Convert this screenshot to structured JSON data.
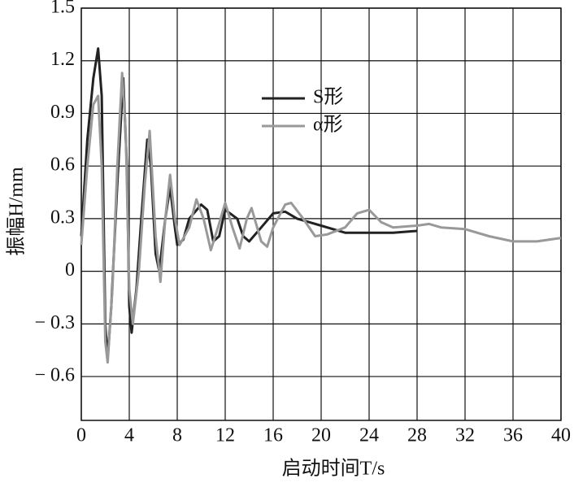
{
  "chart_data": {
    "type": "line",
    "x_label": "启动时间T/s",
    "y_label": "振幅H/mm",
    "xlim": [
      0,
      40
    ],
    "xticks": [
      0,
      4,
      8,
      12,
      16,
      20,
      24,
      28,
      32,
      36,
      40
    ],
    "ylim": [
      -0.85,
      1.5
    ],
    "yticks": [
      {
        "value": -0.6,
        "label": "− 0.6"
      },
      {
        "value": -0.3,
        "label": "− 0.3"
      },
      0,
      0.3,
      0.6,
      0.9,
      1.2,
      1.5
    ],
    "grid": true,
    "legend": "top-center",
    "series": [
      {
        "name": "S形",
        "color": "#222222",
        "x": [
          0,
          0.5,
          1,
          1.4,
          1.7,
          2,
          2.2,
          2.5,
          3,
          3.5,
          3.8,
          4,
          4.2,
          4.6,
          5,
          5.5,
          5.8,
          6.2,
          6.5,
          7,
          7.4,
          7.8,
          8,
          8.5,
          9,
          10,
          10.5,
          11,
          11.5,
          12,
          13,
          13.5,
          14,
          15,
          16,
          17,
          18,
          20,
          22,
          24,
          26,
          28
        ],
        "values": [
          0.2,
          0.75,
          1.1,
          1.27,
          1.0,
          -0.3,
          -0.5,
          -0.2,
          0.5,
          1.1,
          0.6,
          -0.2,
          -0.35,
          -0.1,
          0.3,
          0.75,
          0.6,
          0.1,
          0.0,
          0.3,
          0.48,
          0.25,
          0.15,
          0.18,
          0.3,
          0.38,
          0.35,
          0.17,
          0.2,
          0.35,
          0.3,
          0.2,
          0.17,
          0.25,
          0.33,
          0.34,
          0.3,
          0.26,
          0.22,
          0.22,
          0.22,
          0.23
        ]
      },
      {
        "name": "α形",
        "color": "#999999",
        "x": [
          0,
          0.5,
          1,
          1.4,
          1.7,
          2,
          2.2,
          2.6,
          3,
          3.4,
          3.7,
          4,
          4.3,
          4.8,
          5.3,
          5.7,
          6.2,
          6.6,
          7,
          7.4,
          7.8,
          8.2,
          9,
          9.6,
          10.2,
          10.8,
          11.4,
          12,
          12.6,
          13.2,
          13.8,
          14.2,
          15,
          15.5,
          16,
          17,
          17.5,
          18.5,
          19.5,
          20.5,
          22,
          23,
          24,
          25,
          26,
          28,
          29,
          30,
          32,
          34,
          36,
          38,
          40
        ],
        "values": [
          0.15,
          0.6,
          0.95,
          1.0,
          0.6,
          -0.4,
          -0.52,
          -0.1,
          0.6,
          1.13,
          0.8,
          -0.1,
          -0.3,
          0.0,
          0.5,
          0.8,
          0.2,
          -0.06,
          0.3,
          0.55,
          0.3,
          0.15,
          0.25,
          0.41,
          0.3,
          0.12,
          0.25,
          0.39,
          0.25,
          0.13,
          0.3,
          0.36,
          0.17,
          0.14,
          0.25,
          0.38,
          0.39,
          0.3,
          0.2,
          0.21,
          0.25,
          0.33,
          0.35,
          0.28,
          0.25,
          0.26,
          0.27,
          0.25,
          0.24,
          0.2,
          0.17,
          0.17,
          0.19
        ]
      }
    ]
  }
}
